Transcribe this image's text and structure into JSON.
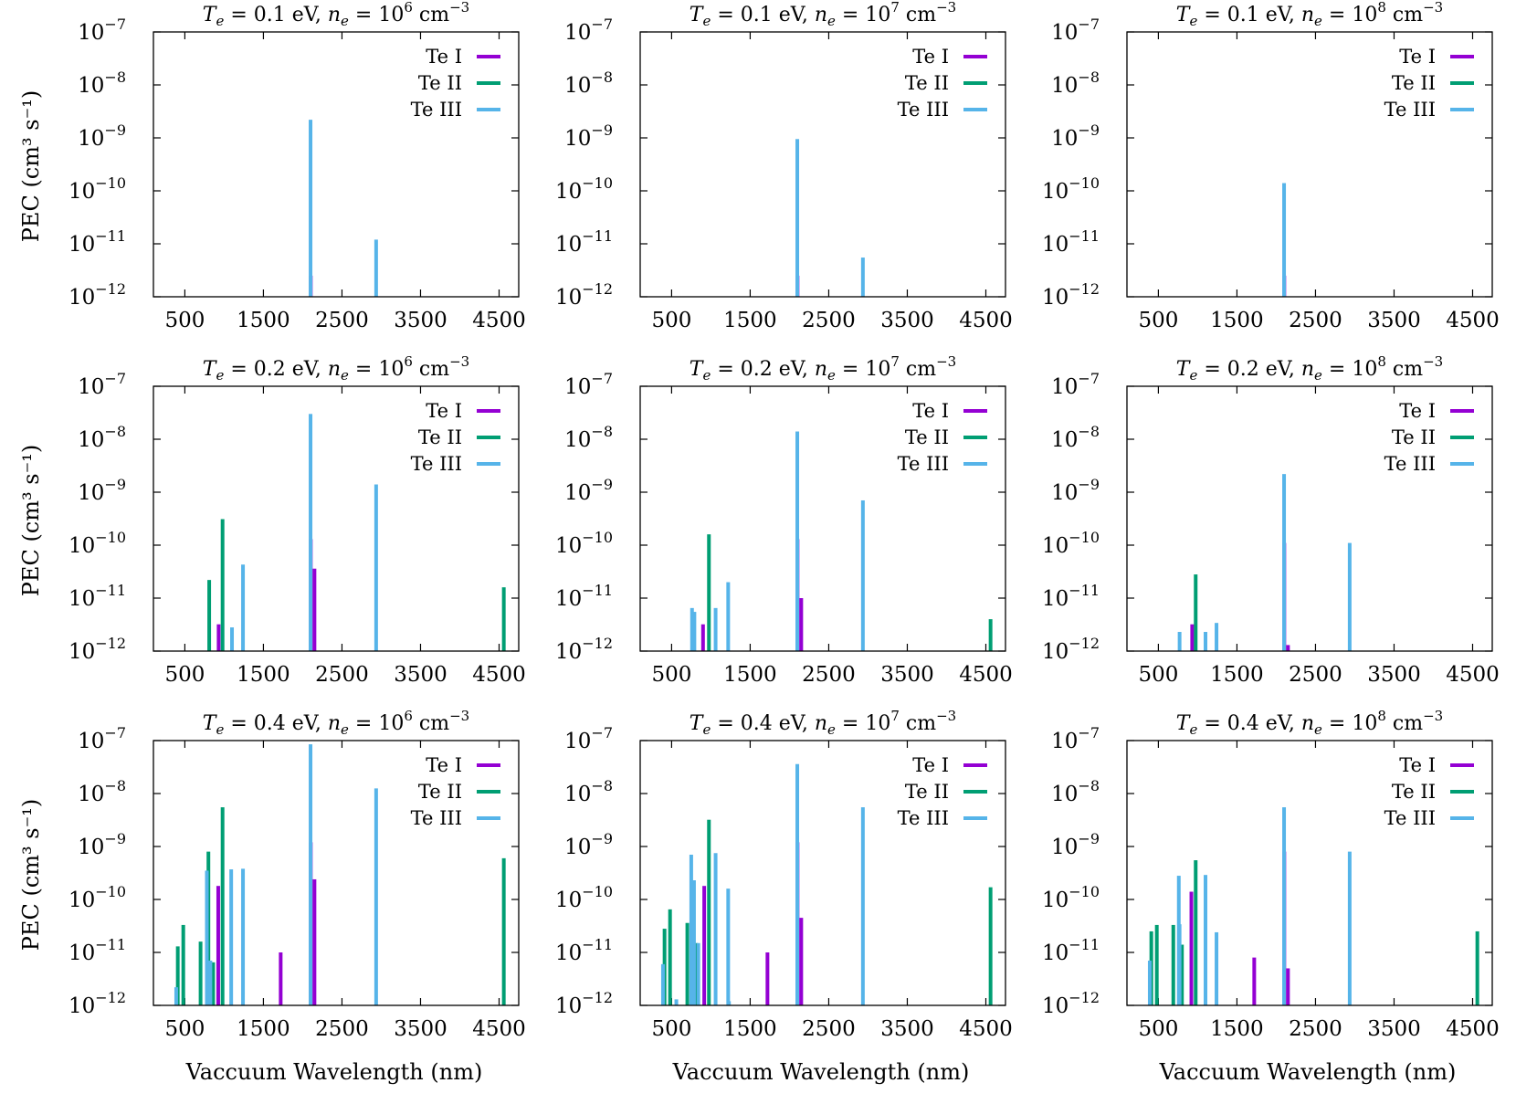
{
  "figure": {
    "ylabel": "PEC (cm³ s⁻¹)",
    "xlabel": "Vaccuum Wavelength (nm)"
  },
  "colors": {
    "Te I": "#9400D3",
    "Te II": "#009E73",
    "Te III": "#56B4E9"
  },
  "chart_data": [
    {
      "type": "bar",
      "row": 0,
      "col": 0,
      "title": {
        "te": "0.1",
        "ne_exp": "6"
      },
      "xlim": [
        100,
        4750
      ],
      "ylim": [
        1e-12,
        1e-07
      ],
      "yscale": "log",
      "xticks": [
        500,
        1500,
        2500,
        3500,
        4500
      ],
      "yticks": [
        -7,
        -8,
        -9,
        -10,
        -11,
        -12
      ],
      "legend": "top-right",
      "grid": false,
      "series": [
        {
          "name": "Te I",
          "points": [
            [
              2103,
              2.5e-12
            ]
          ]
        },
        {
          "name": "Te II",
          "points": []
        },
        {
          "name": "Te III",
          "points": [
            [
              2100,
              2.2e-09
            ],
            [
              2935,
              1.2e-11
            ]
          ]
        }
      ]
    },
    {
      "type": "bar",
      "row": 0,
      "col": 1,
      "title": {
        "te": "0.1",
        "ne_exp": "7"
      },
      "xlim": [
        100,
        4750
      ],
      "ylim": [
        1e-12,
        1e-07
      ],
      "yscale": "log",
      "xticks": [
        500,
        1500,
        2500,
        3500,
        4500
      ],
      "yticks": [
        -7,
        -8,
        -9,
        -10,
        -11,
        -12
      ],
      "legend": "top-right",
      "grid": false,
      "series": [
        {
          "name": "Te I",
          "points": [
            [
              2103,
              2.5e-12
            ]
          ]
        },
        {
          "name": "Te II",
          "points": []
        },
        {
          "name": "Te III",
          "points": [
            [
              2100,
              9.5e-10
            ],
            [
              2935,
              5.5e-12
            ]
          ]
        }
      ]
    },
    {
      "type": "bar",
      "row": 0,
      "col": 2,
      "title": {
        "te": "0.1",
        "ne_exp": "8"
      },
      "xlim": [
        100,
        4750
      ],
      "ylim": [
        1e-12,
        1e-07
      ],
      "yscale": "log",
      "xticks": [
        500,
        1500,
        2500,
        3500,
        4500
      ],
      "yticks": [
        -7,
        -8,
        -9,
        -10,
        -11,
        -12
      ],
      "legend": "top-right",
      "grid": false,
      "series": [
        {
          "name": "Te I",
          "points": [
            [
              2103,
              2.5e-12
            ]
          ]
        },
        {
          "name": "Te II",
          "points": []
        },
        {
          "name": "Te III",
          "points": [
            [
              2100,
              1.4e-10
            ]
          ]
        }
      ]
    },
    {
      "type": "bar",
      "row": 1,
      "col": 0,
      "title": {
        "te": "0.2",
        "ne_exp": "6"
      },
      "xlim": [
        100,
        4750
      ],
      "ylim": [
        1e-12,
        1e-07
      ],
      "yscale": "log",
      "xticks": [
        500,
        1500,
        2500,
        3500,
        4500
      ],
      "yticks": [
        -7,
        -8,
        -9,
        -10,
        -11,
        -12
      ],
      "legend": "top-right",
      "grid": false,
      "series": [
        {
          "name": "Te I",
          "points": [
            [
              930,
              3.2e-12
            ],
            [
              2103,
              1.3e-10
            ],
            [
              2150,
              3.6e-11
            ]
          ]
        },
        {
          "name": "Te II",
          "points": [
            [
              810,
              2.2e-11
            ],
            [
              980,
              3.1e-10
            ],
            [
              4560,
              1.6e-11
            ]
          ]
        },
        {
          "name": "Te III",
          "points": [
            [
              1100,
              2.8e-12
            ],
            [
              1240,
              4.3e-11
            ],
            [
              2100,
              3e-08
            ],
            [
              2935,
              1.4e-09
            ]
          ]
        }
      ]
    },
    {
      "type": "bar",
      "row": 1,
      "col": 1,
      "title": {
        "te": "0.2",
        "ne_exp": "7"
      },
      "xlim": [
        100,
        4750
      ],
      "ylim": [
        1e-12,
        1e-07
      ],
      "yscale": "log",
      "xticks": [
        500,
        1500,
        2500,
        3500,
        4500
      ],
      "yticks": [
        -7,
        -8,
        -9,
        -10,
        -11,
        -12
      ],
      "legend": "top-right",
      "grid": false,
      "series": [
        {
          "name": "Te I",
          "points": [
            [
              900,
              3.2e-12
            ],
            [
              2103,
              1.3e-10
            ],
            [
              2150,
              1e-11
            ]
          ]
        },
        {
          "name": "Te II",
          "points": [
            [
              975,
              1.6e-10
            ],
            [
              4560,
              4e-12
            ]
          ]
        },
        {
          "name": "Te III",
          "points": [
            [
              760,
              6.5e-12
            ],
            [
              790,
              5.5e-12
            ],
            [
              1060,
              6.5e-12
            ],
            [
              1220,
              2e-11
            ],
            [
              2100,
              1.4e-08
            ],
            [
              2935,
              7e-10
            ]
          ]
        }
      ]
    },
    {
      "type": "bar",
      "row": 1,
      "col": 2,
      "title": {
        "te": "0.2",
        "ne_exp": "8"
      },
      "xlim": [
        100,
        4750
      ],
      "ylim": [
        1e-12,
        1e-07
      ],
      "yscale": "log",
      "xticks": [
        500,
        1500,
        2500,
        3500,
        4500
      ],
      "yticks": [
        -7,
        -8,
        -9,
        -10,
        -11,
        -12
      ],
      "legend": "top-right",
      "grid": false,
      "series": [
        {
          "name": "Te I",
          "points": [
            [
              930,
              3.2e-12
            ],
            [
              2103,
              1.1e-10
            ],
            [
              2150,
              1.3e-12
            ]
          ]
        },
        {
          "name": "Te II",
          "points": [
            [
              975,
              2.8e-11
            ]
          ]
        },
        {
          "name": "Te III",
          "points": [
            [
              770,
              2.3e-12
            ],
            [
              1100,
              2.3e-12
            ],
            [
              1240,
              3.4e-12
            ],
            [
              2100,
              2.2e-09
            ],
            [
              2935,
              1.1e-10
            ]
          ]
        }
      ]
    },
    {
      "type": "bar",
      "row": 2,
      "col": 0,
      "title": {
        "te": "0.4",
        "ne_exp": "6"
      },
      "xlim": [
        100,
        4750
      ],
      "ylim": [
        1e-12,
        1e-07
      ],
      "yscale": "log",
      "xticks": [
        500,
        1500,
        2500,
        3500,
        4500
      ],
      "yticks": [
        -7,
        -8,
        -9,
        -10,
        -11,
        -12
      ],
      "legend": "top-right",
      "grid": false,
      "series": [
        {
          "name": "Te I",
          "points": [
            [
              925,
              1.8e-10
            ],
            [
              1720,
              1e-11
            ],
            [
              2103,
              1.2e-09
            ],
            [
              2150,
              2.4e-10
            ]
          ]
        },
        {
          "name": "Te II",
          "points": [
            [
              410,
              1.3e-11
            ],
            [
              480,
              3.3e-11
            ],
            [
              700,
              1.6e-11
            ],
            [
              800,
              8e-10
            ],
            [
              860,
              6.5e-12
            ],
            [
              980,
              5.5e-09
            ],
            [
              4560,
              6e-10
            ]
          ]
        },
        {
          "name": "Te III",
          "points": [
            [
              390,
              2.2e-12
            ],
            [
              780,
              3.5e-10
            ],
            [
              825,
              7e-12
            ],
            [
              1090,
              3.7e-10
            ],
            [
              1240,
              3.8e-10
            ],
            [
              2100,
              8.5e-08
            ],
            [
              2935,
              1.25e-08
            ]
          ]
        }
      ]
    },
    {
      "type": "bar",
      "row": 2,
      "col": 1,
      "title": {
        "te": "0.4",
        "ne_exp": "7"
      },
      "xlim": [
        100,
        4750
      ],
      "ylim": [
        1e-12,
        1e-07
      ],
      "yscale": "log",
      "xticks": [
        500,
        1500,
        2500,
        3500,
        4500
      ],
      "yticks": [
        -7,
        -8,
        -9,
        -10,
        -11,
        -12
      ],
      "legend": "top-right",
      "grid": false,
      "series": [
        {
          "name": "Te I",
          "points": [
            [
              915,
              1.8e-10
            ],
            [
              1720,
              1e-11
            ],
            [
              2103,
              1.2e-09
            ],
            [
              2150,
              4.5e-11
            ]
          ]
        },
        {
          "name": "Te II",
          "points": [
            [
              410,
              2.8e-11
            ],
            [
              480,
              6.5e-11
            ],
            [
              700,
              3.6e-11
            ],
            [
              810,
              1.5e-11
            ],
            [
              975,
              3.2e-09
            ],
            [
              4560,
              1.7e-10
            ]
          ]
        },
        {
          "name": "Te III",
          "points": [
            [
              390,
              6e-12
            ],
            [
              560,
              1.3e-12
            ],
            [
              750,
              7e-10
            ],
            [
              785,
              2.3e-10
            ],
            [
              840,
              1.5e-11
            ],
            [
              1060,
              7.5e-10
            ],
            [
              1220,
              1.6e-10
            ],
            [
              1230,
              1.2e-12
            ],
            [
              2100,
              3.6e-08
            ],
            [
              2935,
              5.5e-09
            ]
          ]
        }
      ]
    },
    {
      "type": "bar",
      "row": 2,
      "col": 2,
      "title": {
        "te": "0.4",
        "ne_exp": "8"
      },
      "xlim": [
        100,
        4750
      ],
      "ylim": [
        1e-12,
        1e-07
      ],
      "yscale": "log",
      "xticks": [
        500,
        1500,
        2500,
        3500,
        4500
      ],
      "yticks": [
        -7,
        -8,
        -9,
        -10,
        -11,
        -12
      ],
      "legend": "top-right",
      "grid": false,
      "series": [
        {
          "name": "Te I",
          "points": [
            [
              920,
              1.4e-10
            ],
            [
              1720,
              8e-12
            ],
            [
              2103,
              8e-10
            ],
            [
              2150,
              5e-12
            ]
          ]
        },
        {
          "name": "Te II",
          "points": [
            [
              410,
              2.5e-11
            ],
            [
              480,
              3.3e-11
            ],
            [
              690,
              3.3e-11
            ],
            [
              800,
              1.4e-11
            ],
            [
              975,
              5.5e-10
            ],
            [
              4560,
              2.5e-11
            ]
          ]
        },
        {
          "name": "Te III",
          "points": [
            [
              390,
              7e-12
            ],
            [
              760,
              2.8e-10
            ],
            [
              770,
              3.4e-11
            ],
            [
              1100,
              2.9e-10
            ],
            [
              1240,
              2.4e-11
            ],
            [
              2100,
              5.5e-09
            ],
            [
              2935,
              8e-10
            ]
          ]
        }
      ]
    }
  ]
}
